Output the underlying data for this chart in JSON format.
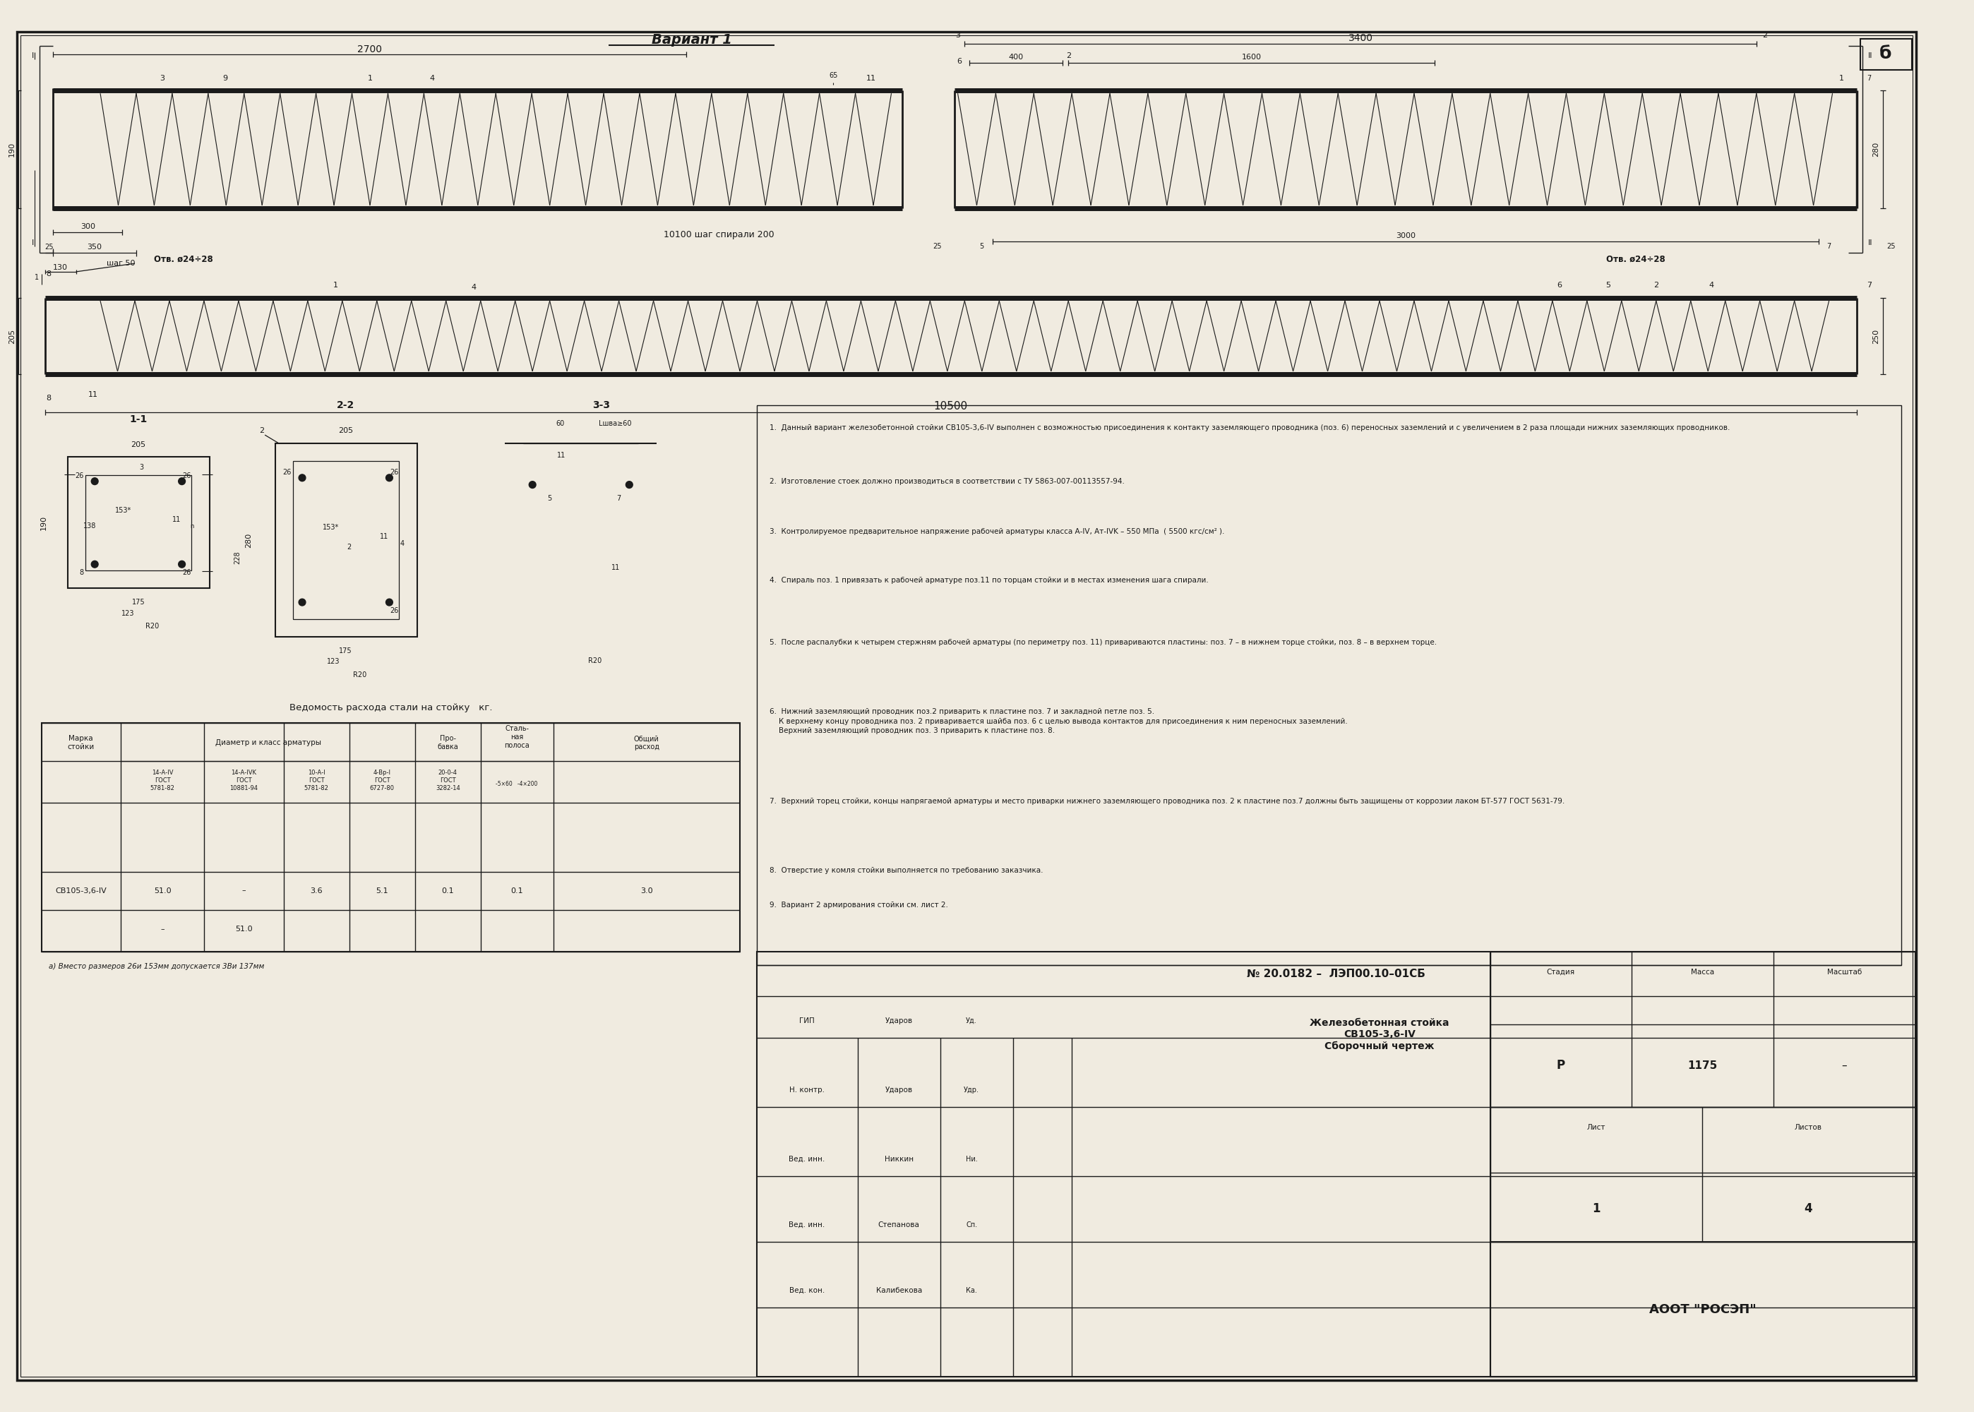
{
  "bg_color": "#f0ebe0",
  "line_color": "#1a1a1a",
  "title": "Вариант 1",
  "page_number": "б",
  "stamp_num": "№ 20.0182 –  ЛЭП00.10–01СБ",
  "stamp_name": "Железобетонная стойка\nСВ105-3,6-IV\nСборочный чертеж",
  "stamp_P": "Р",
  "stamp_1175": "1175",
  "stamp_dash": "–",
  "stamp_1": "1",
  "stamp_4": "4",
  "stamp_firm": "АООТ \"РОСЭП\"",
  "stamp_gip": "ГИП",
  "stamp_nkontr": "Н. контр.",
  "stamp_vedinn1": "Вед. инн.",
  "stamp_vedinn2": "Вед. инн.",
  "stamp_vedkon": "Вед. кон.",
  "stamp_udarov": "Ударов",
  "stamp_nikkin": "Никкин",
  "stamp_stepanova": "Степанова",
  "stamp_kalibekova": "Калибекова",
  "vedmost_title": "Ведомость расхода стали на стойку   кг.",
  "note1": "1.  Данный вариант железобетонной стойки СВ105-3,6-IV выполнен с возможностью присоединения к контакту заземляющего проводника (поз. 6) переносных заземлений и с увеличением в 2 раза площади нижних заземляющих проводников.",
  "note2": "2.  Изготовление стоек должно производиться в соответствии с ТУ 5863-007-00113557-94.",
  "note3": "3.  Контролируемое предварительное напряжение рабочей арматуры класса А-IV, Ат-IVK – 550 МПа  ( 5500 кгс/см² ).",
  "note4": "4.  Спираль поз. 1 привязать к рабочей арматуре поз.11 по торцам стойки и в местах изменения шага спирали.",
  "note5": "5.  После распалубки к четырем стержням рабочей арматуры (по периметру поз. 11) привариваются пластины: поз. 7 – в нижнем торце стойки, поз. 8 – в верхнем торце.",
  "note6": "6.  Нижний заземляющий проводник поз.2 приварить к пластине поз. 7 и закладной петле поз. 5.\n    К верхнему концу проводника поз. 2 приваривается шайба поз. 6 с целью вывода контактов для присоединения к ним переносных заземлений.\n    Верхний заземляющий проводник поз. 3 приварить к пластине поз. 8.",
  "note7": "7.  Верхний торец стойки, концы напрягаемой арматуры и место приварки нижнего заземляющего проводника поз. 2 к пластине поз.7 должны быть защищены от коррозии лаком БТ-577 ГОСТ 5631-79.",
  "note8": "8.  Отверстие у комля стойки выполняется по требованию заказчика.",
  "note9": "9.  Вариант 2 армирования стойки см. лист 2.",
  "table_note": "а) Вместо размеров 26и 153мм допускается 3Ви 137мм"
}
